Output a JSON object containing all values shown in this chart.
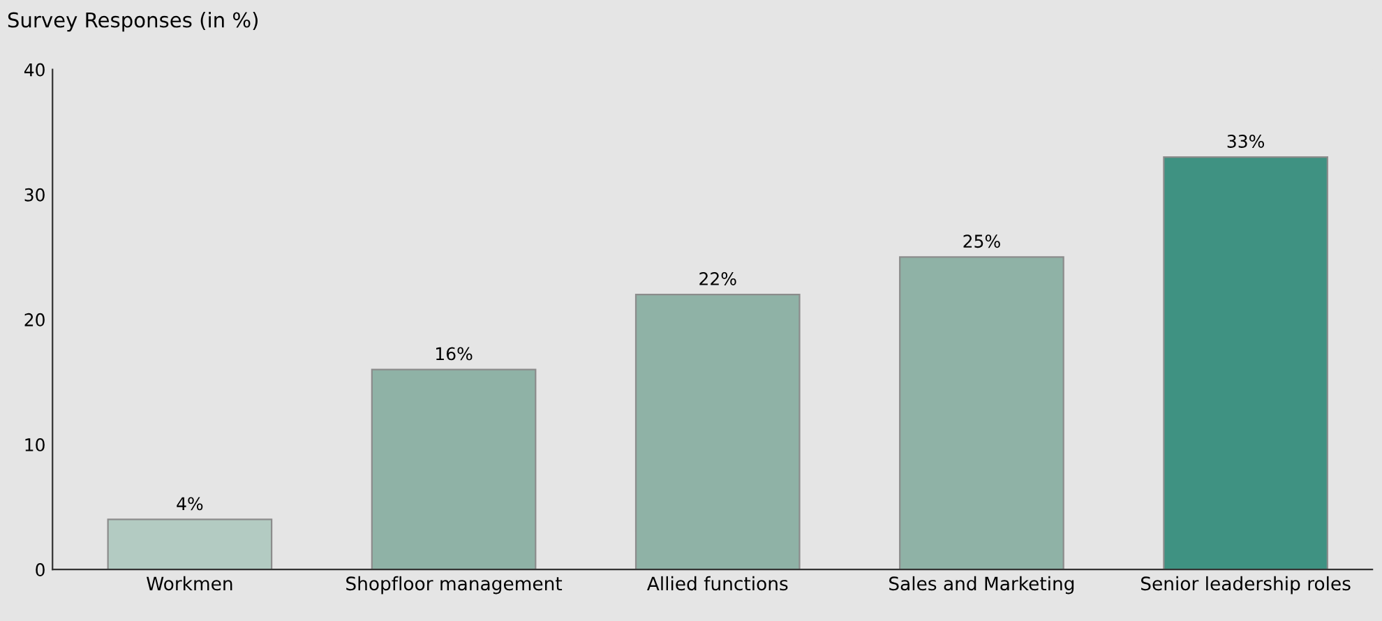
{
  "chart_data": {
    "type": "bar",
    "title": "Survey Responses (in %)",
    "categories": [
      "Workmen",
      "Shopfloor management",
      "Allied functions",
      "Sales and Marketing",
      "Senior leadership roles"
    ],
    "values": [
      4,
      16,
      22,
      25,
      33
    ],
    "colors": [
      "#b3cbc2",
      "#8fb2a6",
      "#8fb2a6",
      "#8fb2a6",
      "#3f9282"
    ],
    "value_labels": [
      "4%",
      "16%",
      "22%",
      "25%",
      "33%"
    ],
    "ylim": [
      0,
      40
    ],
    "yticks": [
      0,
      10,
      20,
      30,
      40
    ],
    "grid": false,
    "legend": false
  }
}
